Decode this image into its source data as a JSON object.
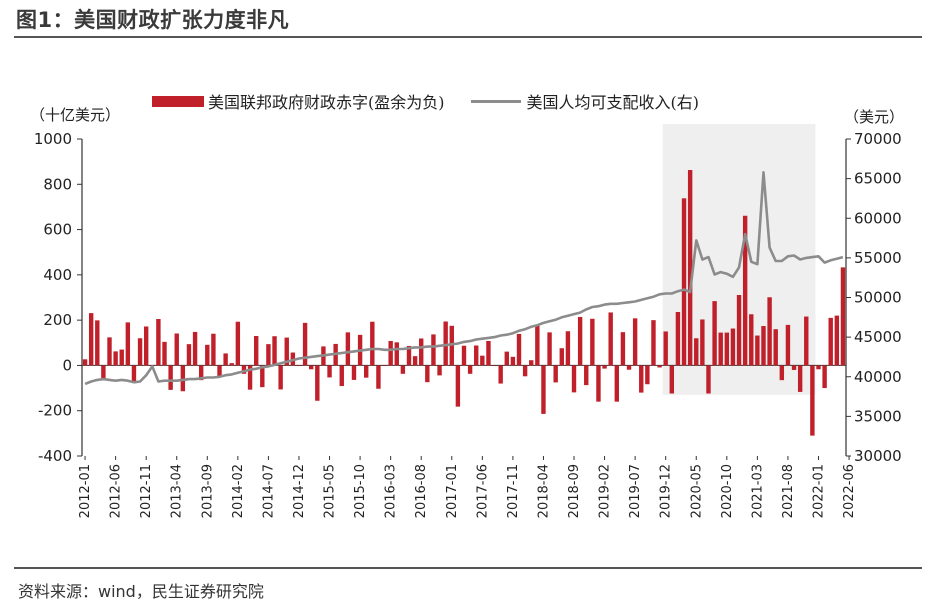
{
  "header": {
    "title": "图1：美国财政扩张力度非凡"
  },
  "footer": {
    "source": "资料来源：wind，民生证券研究院"
  },
  "chart_data": {
    "type": "bar",
    "title": "图1：美国财政扩张力度非凡",
    "y_left_unit": "（十亿美元）",
    "y_right_unit": "（美元）",
    "ylim_left": [
      -400,
      1000
    ],
    "yticks_left": [
      "1000",
      "800",
      "600",
      "400",
      "200",
      "0",
      "-200",
      "-400"
    ],
    "ylim_right": [
      30000,
      70000
    ],
    "yticks_right": [
      "70000",
      "65000",
      "60000",
      "55000",
      "50000",
      "45000",
      "40000",
      "35000",
      "30000"
    ],
    "x_start": "2012-01",
    "x_tick_labels": [
      "2012-01",
      "2012-06",
      "2012-11",
      "2013-04",
      "2013-09",
      "2014-02",
      "2014-07",
      "2014-12",
      "2015-05",
      "2015-10",
      "2016-03",
      "2016-08",
      "2017-01",
      "2017-06",
      "2017-11",
      "2018-04",
      "2018-09",
      "2019-02",
      "2019-07",
      "2019-12",
      "2020-05",
      "2020-10",
      "2021-03",
      "2021-08",
      "2022-01",
      "2022-06"
    ],
    "highlight_range": [
      "2019-12",
      "2021-12"
    ],
    "legend_position": "top",
    "colors": {
      "bar": "#c0202a",
      "line": "#8c8c8c",
      "highlight": "#efefef"
    },
    "series": [
      {
        "name": "美国联邦政府财政赤字(盈余为负)",
        "type": "bar",
        "axis": "left",
        "values": [
          27,
          231,
          199,
          -59,
          124,
          62,
          70,
          190,
          -75,
          120,
          172,
          -1,
          205,
          104,
          -108,
          141,
          -114,
          94,
          148,
          -65,
          91,
          140,
          -49,
          53,
          10,
          193,
          -37,
          -107,
          130,
          -96,
          94,
          129,
          -106,
          123,
          57,
          -2,
          188,
          -17,
          -156,
          84,
          -53,
          95,
          -91,
          146,
          -64,
          135,
          -54,
          193,
          -103,
          -1,
          108,
          102,
          -37,
          86,
          41,
          119,
          -74,
          137,
          -44,
          194,
          175,
          -182,
          87,
          -37,
          88,
          43,
          108,
          -1,
          -80,
          61,
          38,
          139,
          -48,
          23,
          176,
          -214,
          146,
          -75,
          76,
          151,
          -119,
          214,
          -87,
          206,
          -160,
          -14,
          234,
          -160,
          147,
          -19,
          208,
          -120,
          -83,
          200,
          -9,
          150,
          -124,
          236,
          738,
          863,
          120,
          203,
          -124,
          284,
          145,
          145,
          163,
          311,
          661,
          226,
          132,
          174,
          301,
          160,
          -65,
          179,
          -20,
          -117,
          216,
          -310,
          -17,
          -100,
          210,
          220,
          433
        ]
      },
      {
        "name": "美国人均可支配收入(右)",
        "type": "line",
        "axis": "right",
        "values": [
          39100,
          39400,
          39600,
          39700,
          39600,
          39500,
          39600,
          39500,
          39300,
          39400,
          40200,
          41300,
          39400,
          39500,
          39500,
          39500,
          39600,
          39700,
          39700,
          39800,
          39900,
          39900,
          40000,
          40200,
          40300,
          40500,
          40700,
          40900,
          41000,
          41200,
          41300,
          41500,
          41700,
          41900,
          42100,
          42300,
          42400,
          42500,
          42600,
          42700,
          42800,
          42900,
          43000,
          43100,
          43200,
          43300,
          43400,
          43500,
          43500,
          43400,
          43400,
          43500,
          43500,
          43600,
          43700,
          43700,
          43800,
          43800,
          43900,
          44000,
          44100,
          44200,
          44400,
          44500,
          44700,
          44800,
          44900,
          45000,
          45200,
          45300,
          45500,
          45800,
          46000,
          46300,
          46500,
          46800,
          47000,
          47200,
          47500,
          47700,
          47900,
          48100,
          48500,
          48800,
          48900,
          49100,
          49200,
          49200,
          49300,
          49400,
          49500,
          49700,
          49900,
          50100,
          50400,
          50500,
          50500,
          50800,
          51000,
          50700,
          57200,
          54800,
          55100,
          52900,
          53200,
          53000,
          52600,
          53800,
          58000,
          54500,
          54200,
          65800,
          56300,
          54600,
          54600,
          55200,
          55300,
          54800,
          55000,
          55100,
          55200,
          54400,
          54700,
          54900,
          55100
        ]
      }
    ]
  }
}
